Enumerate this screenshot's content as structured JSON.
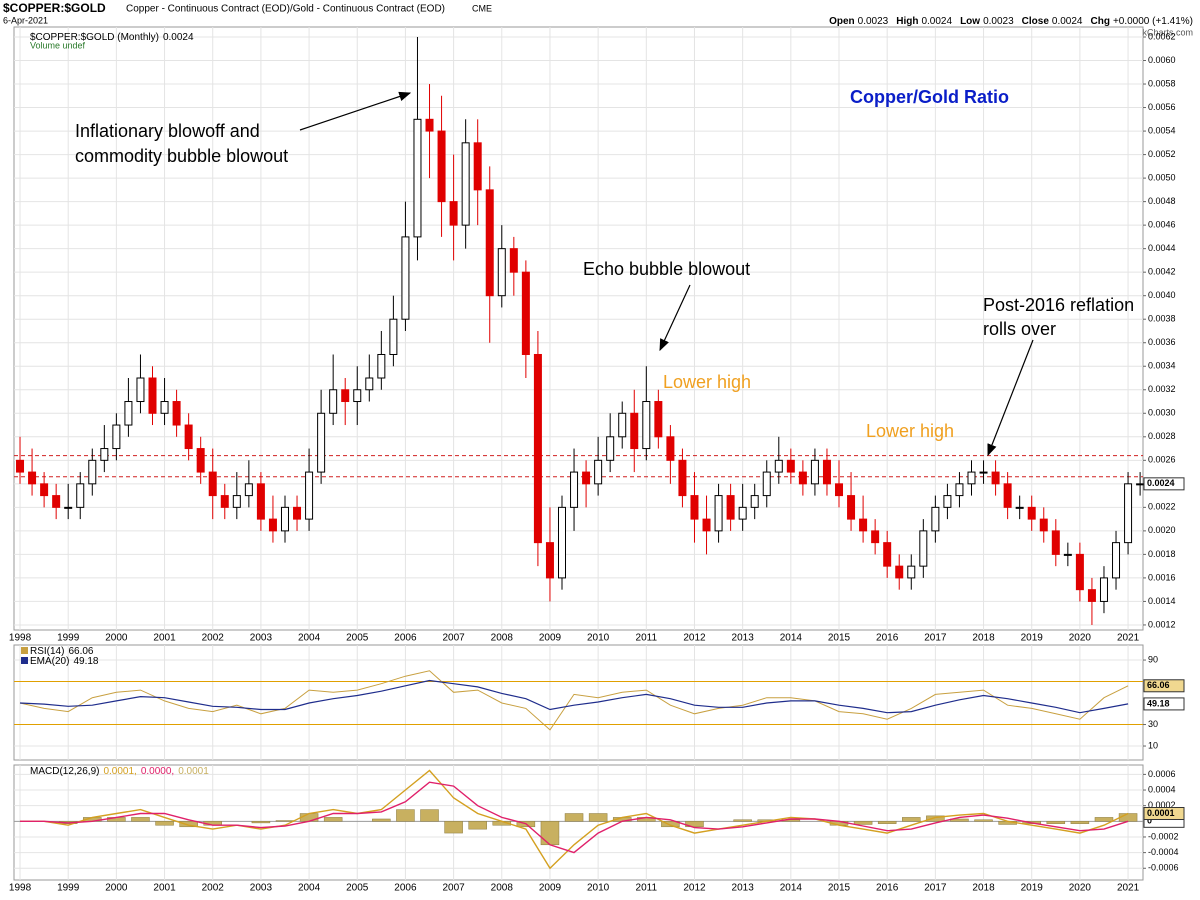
{
  "header": {
    "symbol": "$COPPER:$GOLD",
    "description": "Copper - Continuous Contract (EOD)/Gold - Continuous Contract (EOD)",
    "exchange": "CME",
    "date": "6-Apr-2021",
    "copyright": "© StockCharts.com",
    "quote": [
      {
        "label": "Open",
        "value": 0.0023
      },
      {
        "label": "High",
        "value": 0.0024
      },
      {
        "label": "Low",
        "value": 0.0023
      },
      {
        "label": "Close",
        "value": 0.0024
      },
      {
        "label": "Chg",
        "value": "+0.0000 (+1.41%)"
      }
    ]
  },
  "chart_data": [
    {
      "type": "candlestick",
      "title": "Copper/Gold Ratio",
      "legend": "$COPPER:$GOLD (Monthly)",
      "volume_note": "Volume undef",
      "annotations": [
        "Inflationary blowoff and",
        "commodity bubble blowout",
        "Echo bubble blowout",
        "Lower high",
        "Lower high",
        "Post-2016 reflation",
        "rolls over"
      ],
      "x": [
        1998,
        1998.25,
        1998.5,
        1998.75,
        1999,
        1999.25,
        1999.5,
        1999.75,
        2000,
        2000.25,
        2000.5,
        2000.75,
        2001,
        2001.25,
        2001.5,
        2001.75,
        2002,
        2002.25,
        2002.5,
        2002.75,
        2003,
        2003.25,
        2003.5,
        2003.75,
        2004,
        2004.25,
        2004.5,
        2004.75,
        2005,
        2005.25,
        2005.5,
        2005.75,
        2006,
        2006.25,
        2006.5,
        2006.75,
        2007,
        2007.25,
        2007.5,
        2007.75,
        2008,
        2008.25,
        2008.5,
        2008.75,
        2009,
        2009.25,
        2009.5,
        2009.75,
        2010,
        2010.25,
        2010.5,
        2010.75,
        2011,
        2011.25,
        2011.5,
        2011.75,
        2012,
        2012.25,
        2012.5,
        2012.75,
        2013,
        2013.25,
        2013.5,
        2013.75,
        2014,
        2014.25,
        2014.5,
        2014.75,
        2015,
        2015.25,
        2015.5,
        2015.75,
        2016,
        2016.25,
        2016.5,
        2016.75,
        2017,
        2017.25,
        2017.5,
        2017.75,
        2018,
        2018.25,
        2018.5,
        2018.75,
        2019,
        2019.25,
        2019.5,
        2019.75,
        2020,
        2020.25,
        2020.5,
        2020.75,
        2021,
        2021.25
      ],
      "open": [
        0.0026,
        0.0025,
        0.0024,
        0.0023,
        0.0022,
        0.0022,
        0.0024,
        0.0026,
        0.0027,
        0.0029,
        0.0031,
        0.0033,
        0.003,
        0.0031,
        0.0029,
        0.0027,
        0.0025,
        0.0023,
        0.0022,
        0.0023,
        0.0024,
        0.0021,
        0.002,
        0.0022,
        0.0021,
        0.0025,
        0.003,
        0.0032,
        0.0031,
        0.0032,
        0.0033,
        0.0035,
        0.0038,
        0.0045,
        0.0055,
        0.0054,
        0.0048,
        0.0046,
        0.0053,
        0.0049,
        0.004,
        0.0044,
        0.0042,
        0.0035,
        0.0019,
        0.0016,
        0.0022,
        0.0025,
        0.0024,
        0.0026,
        0.0028,
        0.003,
        0.0027,
        0.0031,
        0.0028,
        0.0026,
        0.0023,
        0.0021,
        0.002,
        0.0023,
        0.0021,
        0.0022,
        0.0023,
        0.0025,
        0.0026,
        0.0025,
        0.0024,
        0.0026,
        0.0024,
        0.0023,
        0.0021,
        0.002,
        0.0019,
        0.0017,
        0.0016,
        0.0017,
        0.002,
        0.0022,
        0.0023,
        0.0024,
        0.0025,
        0.0025,
        0.0024,
        0.0022,
        0.0022,
        0.0021,
        0.002,
        0.0018,
        0.0018,
        0.0015,
        0.0014,
        0.0016,
        0.0019,
        0.0024
      ],
      "high": [
        0.0028,
        0.0027,
        0.0025,
        0.0024,
        0.0024,
        0.0025,
        0.0027,
        0.0029,
        0.003,
        0.0033,
        0.0035,
        0.0034,
        0.0033,
        0.0032,
        0.003,
        0.0028,
        0.0027,
        0.0024,
        0.0025,
        0.0026,
        0.0025,
        0.0023,
        0.0023,
        0.0023,
        0.0027,
        0.0032,
        0.0035,
        0.0033,
        0.0034,
        0.0035,
        0.0037,
        0.004,
        0.0048,
        0.0062,
        0.0058,
        0.0057,
        0.0052,
        0.0055,
        0.0055,
        0.0051,
        0.0046,
        0.0045,
        0.0043,
        0.0037,
        0.0022,
        0.0023,
        0.0027,
        0.0026,
        0.0028,
        0.003,
        0.0031,
        0.0032,
        0.0034,
        0.0032,
        0.0029,
        0.0027,
        0.0025,
        0.0023,
        0.0024,
        0.0024,
        0.0024,
        0.0024,
        0.0026,
        0.0028,
        0.0027,
        0.0026,
        0.0027,
        0.0027,
        0.0026,
        0.0025,
        0.0023,
        0.0021,
        0.002,
        0.0018,
        0.0018,
        0.0021,
        0.0023,
        0.0024,
        0.0025,
        0.0026,
        0.0026,
        0.0026,
        0.0025,
        0.0023,
        0.0023,
        0.0022,
        0.0021,
        0.0019,
        0.0019,
        0.0016,
        0.0017,
        0.002,
        0.0025,
        0.0025
      ],
      "low": [
        0.0024,
        0.0023,
        0.0022,
        0.0021,
        0.0021,
        0.0021,
        0.0023,
        0.0025,
        0.0026,
        0.0028,
        0.003,
        0.0029,
        0.0029,
        0.0028,
        0.0026,
        0.0024,
        0.0021,
        0.0021,
        0.0021,
        0.0022,
        0.002,
        0.0019,
        0.0019,
        0.002,
        0.002,
        0.0024,
        0.0029,
        0.0029,
        0.0029,
        0.0031,
        0.0032,
        0.0034,
        0.0037,
        0.0043,
        0.005,
        0.0045,
        0.0043,
        0.0044,
        0.0046,
        0.0036,
        0.0039,
        0.004,
        0.0033,
        0.0017,
        0.0014,
        0.0015,
        0.002,
        0.0022,
        0.0023,
        0.0025,
        0.0027,
        0.0025,
        0.0026,
        0.0027,
        0.0024,
        0.0022,
        0.0019,
        0.0018,
        0.0019,
        0.002,
        0.002,
        0.0021,
        0.0022,
        0.0024,
        0.0024,
        0.0023,
        0.0023,
        0.0023,
        0.0022,
        0.002,
        0.0019,
        0.0018,
        0.0016,
        0.0015,
        0.0015,
        0.0016,
        0.0019,
        0.0021,
        0.0022,
        0.0023,
        0.0024,
        0.0023,
        0.0021,
        0.0021,
        0.002,
        0.0019,
        0.0017,
        0.0017,
        0.0014,
        0.0012,
        0.0013,
        0.0015,
        0.0018,
        0.0023
      ],
      "close": [
        0.0025,
        0.0024,
        0.0023,
        0.0022,
        0.0022,
        0.0024,
        0.0026,
        0.0027,
        0.0029,
        0.0031,
        0.0033,
        0.003,
        0.0031,
        0.0029,
        0.0027,
        0.0025,
        0.0023,
        0.0022,
        0.0023,
        0.0024,
        0.0021,
        0.002,
        0.0022,
        0.0021,
        0.0025,
        0.003,
        0.0032,
        0.0031,
        0.0032,
        0.0033,
        0.0035,
        0.0038,
        0.0045,
        0.0055,
        0.0054,
        0.0048,
        0.0046,
        0.0053,
        0.0049,
        0.004,
        0.0044,
        0.0042,
        0.0035,
        0.0019,
        0.0016,
        0.0022,
        0.0025,
        0.0024,
        0.0026,
        0.0028,
        0.003,
        0.0027,
        0.0031,
        0.0028,
        0.0026,
        0.0023,
        0.0021,
        0.002,
        0.0023,
        0.0021,
        0.0022,
        0.0023,
        0.0025,
        0.0026,
        0.0025,
        0.0024,
        0.0026,
        0.0024,
        0.0023,
        0.0021,
        0.002,
        0.0019,
        0.0017,
        0.0016,
        0.0017,
        0.002,
        0.0022,
        0.0023,
        0.0024,
        0.0025,
        0.0025,
        0.0024,
        0.0022,
        0.0022,
        0.0021,
        0.002,
        0.0018,
        0.0018,
        0.0015,
        0.0014,
        0.0016,
        0.0019,
        0.0024,
        0.0024
      ],
      "up_color": "#000000",
      "down_color": "#e00000",
      "reference_lines": [
        0.00264,
        0.00246
      ],
      "reference_color": "#d02020",
      "xlim": [
        1997.875,
        2021.31
      ],
      "xticks": [
        1998,
        1999,
        2000,
        2001,
        2002,
        2003,
        2004,
        2005,
        2006,
        2007,
        2008,
        2009,
        2010,
        2011,
        2012,
        2013,
        2014,
        2015,
        2016,
        2017,
        2018,
        2019,
        2020,
        2021
      ],
      "ylim": [
        0.001157,
        0.006285
      ],
      "yticks": [
        0.0012,
        0.0014,
        0.0016,
        0.0018,
        {
          "value": 0.002,
          "label": "0.0020"
        },
        0.0022,
        0.0024,
        0.0026,
        0.0028,
        {
          "value": 0.003,
          "label": "0.0030"
        },
        0.0032,
        0.0034,
        0.0036,
        0.0038,
        {
          "value": 0.004,
          "label": "0.0040"
        },
        0.0042,
        0.0044,
        0.0046,
        0.0048,
        {
          "value": 0.005,
          "label": "0.0050"
        },
        0.0052,
        0.0054,
        0.0056,
        0.0058,
        {
          "value": 0.006,
          "label": "0.0060"
        },
        0.0062
      ],
      "grid": true
    },
    {
      "type": "line",
      "x": [
        1998,
        1998.5,
        1999,
        1999.5,
        2000,
        2000.5,
        2001,
        2001.5,
        2002,
        2002.5,
        2003,
        2003.5,
        2004,
        2004.5,
        2005,
        2005.5,
        2006,
        2006.5,
        2007,
        2007.5,
        2008,
        2008.5,
        2009,
        2009.5,
        2010,
        2010.5,
        2011,
        2011.5,
        2012,
        2012.5,
        2013,
        2013.5,
        2014,
        2014.5,
        2015,
        2015.5,
        2016,
        2016.5,
        2017,
        2017.5,
        2018,
        2018.5,
        2019,
        2019.5,
        2020,
        2020.5,
        2021
      ],
      "series": [
        {
          "name": "RSI(14)",
          "color": "#c8a040",
          "values": [
            50,
            45,
            42,
            55,
            60,
            62,
            52,
            45,
            42,
            48,
            40,
            45,
            62,
            60,
            62,
            68,
            75,
            80,
            60,
            62,
            50,
            45,
            25,
            58,
            55,
            60,
            62,
            48,
            40,
            45,
            48,
            55,
            55,
            52,
            42,
            40,
            35,
            45,
            58,
            60,
            62,
            48,
            45,
            40,
            35,
            55,
            66.06
          ]
        },
        {
          "name": "EMA(20)",
          "color": "#1f2d8c",
          "values": [
            50,
            49,
            47,
            48,
            52,
            56,
            55,
            51,
            47,
            46,
            44,
            44,
            50,
            54,
            57,
            61,
            66,
            71,
            68,
            65,
            59,
            54,
            44,
            48,
            51,
            55,
            58,
            54,
            48,
            46,
            46,
            50,
            52,
            52,
            48,
            45,
            41,
            42,
            48,
            53,
            57,
            54,
            50,
            46,
            41,
            45,
            49.18
          ]
        }
      ],
      "levels": [
        30,
        70
      ],
      "level_color": "#e0a000",
      "ylim": [
        -3,
        104
      ],
      "yticks": [
        10,
        30,
        90
      ],
      "grid": true
    },
    {
      "type": "macd",
      "legend": "MACD(12,26,9)",
      "legend_values": [
        "0.0001,",
        "0.0000,",
        "0.0001"
      ],
      "x": [
        1998,
        1998.5,
        1999,
        1999.5,
        2000,
        2000.5,
        2001,
        2001.5,
        2002,
        2002.5,
        2003,
        2003.5,
        2004,
        2004.5,
        2005,
        2005.5,
        2006,
        2006.5,
        2007,
        2007.5,
        2008,
        2008.5,
        2009,
        2009.5,
        2010,
        2010.5,
        2011,
        2011.5,
        2012,
        2012.5,
        2013,
        2013.5,
        2014,
        2014.5,
        2015,
        2015.5,
        2016,
        2016.5,
        2017,
        2017.5,
        2018,
        2018.5,
        2019,
        2019.5,
        2020,
        2020.5,
        2021
      ],
      "series": [
        {
          "name": "MACD",
          "color": "#d4a020",
          "values": [
            0,
            0,
            -5e-05,
            5e-05,
            0.0001,
            0.00015,
            5e-05,
            -5e-05,
            -0.0001,
            -5e-05,
            -0.0001,
            -5e-05,
            0.0001,
            0.00015,
            0.0001,
            0.00015,
            0.0004,
            0.00065,
            0.0003,
            0.0001,
            0,
            -0.0001,
            -0.0006,
            -0.0003,
            -5e-05,
            5e-05,
            0.0001,
            -5e-05,
            -0.00015,
            -0.0001,
            -5e-05,
            0,
            5e-05,
            3e-05,
            -5e-05,
            -0.0001,
            -0.00015,
            -5e-05,
            5e-05,
            8e-05,
            0.0001,
            0,
            -5e-05,
            -0.0001,
            -0.00015,
            -5e-05,
            0.0001
          ]
        },
        {
          "name": "Signal",
          "color": "#e0206a",
          "values": [
            0,
            0,
            -2e-05,
            0,
            5e-05,
            0.0001,
            0.0001,
            2e-05,
            -5e-05,
            -5e-05,
            -8e-05,
            -6e-05,
            0,
            0.0001,
            0.0001,
            0.00012,
            0.00025,
            0.0005,
            0.00045,
            0.0002,
            5e-05,
            -3e-05,
            -0.0003,
            -0.0004,
            -0.00015,
            0,
            5e-05,
            2e-05,
            -8e-05,
            -0.0001,
            -7e-05,
            -2e-05,
            3e-05,
            3e-05,
            0,
            -6e-05,
            -0.00012,
            -0.0001,
            -2e-05,
            5e-05,
            8e-05,
            4e-05,
            -2e-05,
            -7e-05,
            -0.00012,
            -0.0001,
            0
          ]
        },
        {
          "name": "Histogram",
          "color": "#c8b060",
          "values": [
            0,
            0,
            -3e-05,
            5e-05,
            5e-05,
            5e-05,
            -5e-05,
            -7e-05,
            -5e-05,
            0,
            -2e-05,
            1e-05,
            0.0001,
            5e-05,
            0,
            3e-05,
            0.00015,
            0.00015,
            -0.00015,
            -0.0001,
            -5e-05,
            -7e-05,
            -0.0003,
            0.0001,
            0.0001,
            5e-05,
            5e-05,
            -7e-05,
            -7e-05,
            0,
            2e-05,
            2e-05,
            2e-05,
            0,
            -5e-05,
            -4e-05,
            -3e-05,
            5e-05,
            7e-05,
            3e-05,
            2e-05,
            -4e-05,
            -3e-05,
            -3e-05,
            -3e-05,
            5e-05,
            0.0001
          ]
        }
      ],
      "xticks": [
        1998,
        1999,
        2000,
        2001,
        2002,
        2003,
        2004,
        2005,
        2006,
        2007,
        2008,
        2009,
        2010,
        2011,
        2012,
        2013,
        2014,
        2015,
        2016,
        2017,
        2018,
        2019,
        2020,
        2021
      ],
      "ylim": [
        -0.00075,
        0.00072
      ],
      "yticks": [
        -0.0006,
        -0.0004,
        -0.0002,
        0.0002,
        0.0004,
        0.0006
      ],
      "grid": true
    }
  ]
}
